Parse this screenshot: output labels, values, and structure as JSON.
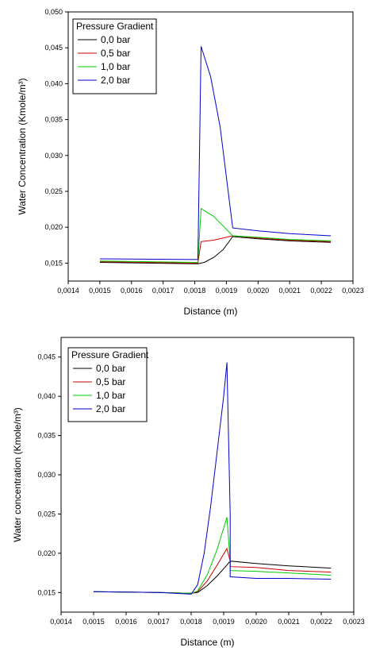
{
  "chart_data": [
    {
      "type": "line",
      "title": "",
      "xlabel": "Distance (m)",
      "ylabel": "Water Concentration (Kmole/m³)",
      "xlim": [
        0.0014,
        0.0023
      ],
      "ylim": [
        0.0125,
        0.05
      ],
      "x_ticks": [
        0.0014,
        0.0015,
        0.0016,
        0.0017,
        0.0018,
        0.0019,
        0.002,
        0.0021,
        0.0022,
        0.0023
      ],
      "x_tick_labels": [
        "0,0014",
        "0,0015",
        "0,0016",
        "0,0017",
        "0,0018",
        "0,0019",
        "0,0020",
        "0,0021",
        "0,0022",
        "0,0023"
      ],
      "y_ticks": [
        0.015,
        0.02,
        0.025,
        0.03,
        0.035,
        0.04,
        0.045,
        0.05
      ],
      "y_tick_labels": [
        "0,015",
        "0,020",
        "0,025",
        "0,030",
        "0,035",
        "0,040",
        "0,045",
        "0,050"
      ],
      "legend_title": "Pressure Gradient",
      "legend_position": "top-left",
      "grid": false,
      "series": [
        {
          "name": "0,0 bar",
          "color": "#000000",
          "x": [
            0.0015,
            0.0018,
            0.00181,
            0.00183,
            0.00186,
            0.00189,
            0.00192,
            0.002,
            0.0021,
            0.00223
          ],
          "y": [
            0.0151,
            0.0149,
            0.0149,
            0.0151,
            0.0158,
            0.0169,
            0.0187,
            0.0184,
            0.0181,
            0.0179
          ]
        },
        {
          "name": "0,5 bar",
          "color": "#cc0000",
          "x": [
            0.0015,
            0.0018,
            0.00181,
            0.00182,
            0.00186,
            0.00192,
            0.002,
            0.0021,
            0.00223
          ],
          "y": [
            0.0152,
            0.015,
            0.015,
            0.018,
            0.0182,
            0.0188,
            0.0185,
            0.0182,
            0.018
          ]
        },
        {
          "name": "1,0 bar",
          "color": "#00cc00",
          "x": [
            0.0015,
            0.0018,
            0.00181,
            0.00182,
            0.00186,
            0.00192,
            0.002,
            0.0021,
            0.00223
          ],
          "y": [
            0.0153,
            0.0151,
            0.0151,
            0.0226,
            0.0215,
            0.0188,
            0.0186,
            0.0183,
            0.0181
          ]
        },
        {
          "name": "2,0 bar",
          "color": "#0000cc",
          "x": [
            0.0015,
            0.0018,
            0.00181,
            0.00182,
            0.00185,
            0.00188,
            0.00192,
            0.002,
            0.0021,
            0.00223
          ],
          "y": [
            0.0156,
            0.0155,
            0.0155,
            0.0452,
            0.041,
            0.034,
            0.0199,
            0.0195,
            0.0191,
            0.0188
          ]
        }
      ]
    },
    {
      "type": "line",
      "title": "",
      "xlabel": "Distance (m)",
      "ylabel": "Water concentration (Kmole/m³)",
      "xlim": [
        0.0014,
        0.0023
      ],
      "ylim": [
        0.0125,
        0.0475
      ],
      "x_ticks": [
        0.0014,
        0.0015,
        0.0016,
        0.0017,
        0.0018,
        0.0019,
        0.002,
        0.0021,
        0.0022,
        0.0023
      ],
      "x_tick_labels": [
        "0,0014",
        "0,0015",
        "0,0016",
        "0,0017",
        "0,0018",
        "0,0019",
        "0,0020",
        "0,0021",
        "0,0022",
        "0,0023"
      ],
      "y_ticks": [
        0.015,
        0.02,
        0.025,
        0.03,
        0.035,
        0.04,
        0.045
      ],
      "y_tick_labels": [
        "0,015",
        "0,020",
        "0,025",
        "0,030",
        "0,035",
        "0,040",
        "0,045"
      ],
      "legend_title": "Pressure Gradient",
      "legend_position": "top-left",
      "grid": false,
      "series": [
        {
          "name": "0,0 bar",
          "color": "#000000",
          "x": [
            0.0015,
            0.0017,
            0.0018,
            0.00182,
            0.00185,
            0.00188,
            0.00191,
            0.00192,
            0.002,
            0.0021,
            0.00223
          ],
          "y": [
            0.0151,
            0.015,
            0.0149,
            0.015,
            0.0159,
            0.0171,
            0.0185,
            0.019,
            0.0187,
            0.0184,
            0.0181
          ]
        },
        {
          "name": "0,5 bar",
          "color": "#cc0000",
          "x": [
            0.0015,
            0.0017,
            0.0018,
            0.00182,
            0.00185,
            0.00188,
            0.00191,
            0.00192,
            0.00192,
            0.002,
            0.0021,
            0.00223
          ],
          "y": [
            0.0151,
            0.015,
            0.0149,
            0.0151,
            0.0165,
            0.0185,
            0.0206,
            0.019,
            0.0183,
            0.0182,
            0.0178,
            0.0176
          ]
        },
        {
          "name": "1,0 bar",
          "color": "#00cc00",
          "x": [
            0.0015,
            0.0017,
            0.0018,
            0.00182,
            0.00185,
            0.00188,
            0.00191,
            0.00192,
            0.00192,
            0.002,
            0.0021,
            0.00223
          ],
          "y": [
            0.0151,
            0.015,
            0.0149,
            0.0152,
            0.0173,
            0.0205,
            0.0246,
            0.019,
            0.0178,
            0.0177,
            0.0175,
            0.0172
          ]
        },
        {
          "name": "2,0 bar",
          "color": "#0000cc",
          "x": [
            0.0015,
            0.0017,
            0.0018,
            0.00182,
            0.00184,
            0.00186,
            0.00188,
            0.0019,
            0.00191,
            0.00192,
            0.00192,
            0.002,
            0.0021,
            0.00223
          ],
          "y": [
            0.0151,
            0.015,
            0.0148,
            0.016,
            0.02,
            0.026,
            0.033,
            0.04,
            0.0443,
            0.025,
            0.017,
            0.0168,
            0.0168,
            0.0167
          ]
        }
      ]
    }
  ]
}
